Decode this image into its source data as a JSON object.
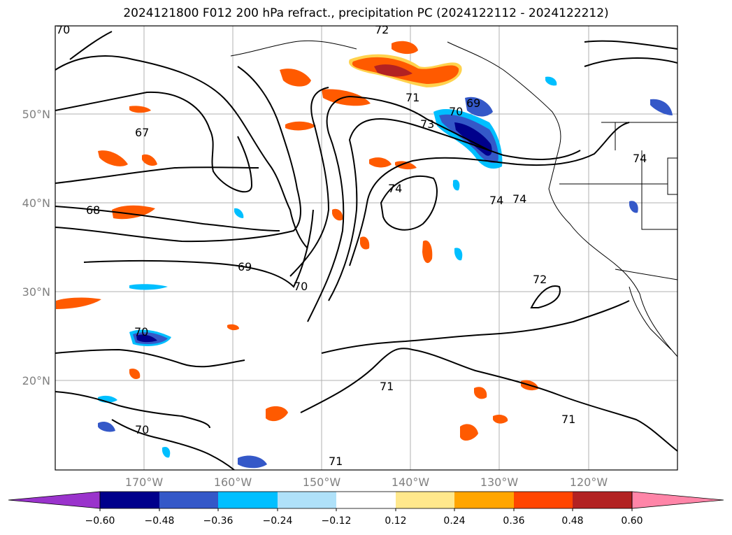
{
  "title": "2024121800 F012 200 hPa refract., precipitation PC (2024122112 - 2024122212)",
  "lat_labels": [
    "50°N",
    "40°N",
    "30°N",
    "20°N"
  ],
  "lon_labels": [
    "170°W",
    "160°W",
    "150°W",
    "140°W",
    "130°W",
    "120°W"
  ],
  "contour_labels": [
    "70",
    "72",
    "71",
    "70",
    "69",
    "73",
    "67",
    "74",
    "74",
    "74",
    "74",
    "68",
    "69",
    "70",
    "72",
    "70",
    "71",
    "71",
    "70",
    "71"
  ],
  "colorbar": {
    "ticks": [
      "−0.60",
      "−0.48",
      "−0.36",
      "−0.24",
      "−0.12",
      "0.12",
      "0.24",
      "0.36",
      "0.48",
      "0.60"
    ],
    "colors": [
      "#9a33cc",
      "#00008b",
      "#3458c8",
      "#00bfff",
      "#afe1f9",
      "#ffffff",
      "#ffe88c",
      "#ffa500",
      "#ff4500",
      "#b22222",
      "#ff85a8"
    ]
  }
}
